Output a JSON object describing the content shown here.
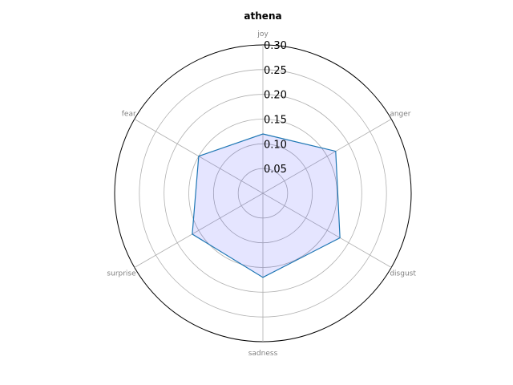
{
  "chart_data": {
    "type": "radar",
    "title": "athena",
    "categories": [
      "joy",
      "anger",
      "disgust",
      "sadness",
      "surprise",
      "fear"
    ],
    "series": [
      {
        "values": [
          0.12,
          0.17,
          0.18,
          0.17,
          0.165,
          0.15
        ]
      }
    ],
    "rlim": [
      0,
      0.3
    ],
    "rticks": [
      0.05,
      0.1,
      0.15,
      0.2,
      0.25,
      0.3
    ],
    "rtick_labels": [
      "0.05",
      "0.10",
      "0.15",
      "0.20",
      "0.25",
      "0.30"
    ],
    "grid": true,
    "colors": {
      "line": "#1f77b4",
      "fill": "#0000ff",
      "grid": "#b0b0b0",
      "outer": "#000000",
      "axis_label": "#808080"
    }
  }
}
